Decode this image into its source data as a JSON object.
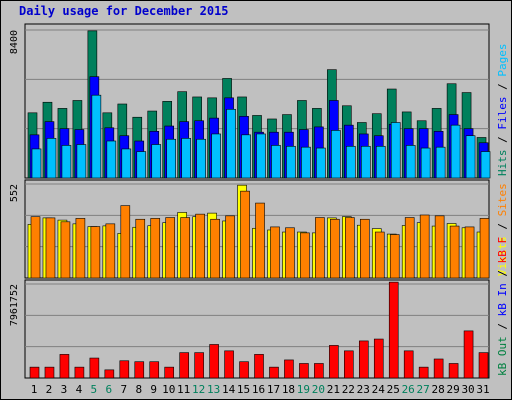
{
  "title": "Daily usage for December 2015",
  "colors": {
    "background": "#C0C0C0",
    "panel": "#C0C0C0",
    "hits": "#00805C",
    "files": "#0000FF",
    "pages": "#00C0FF",
    "visits": "#FFFF00",
    "sites": "#FF8000",
    "kbin": "#0000FF",
    "kbout": "#008040",
    "kbytes": "#FF0000",
    "weekday_label": "#000000",
    "weekend_label": "#00805C"
  },
  "legend": {
    "top": [
      {
        "text": "Hits",
        "color": "#00805C"
      },
      {
        "text": "Files",
        "color": "#0000FF"
      },
      {
        "text": "Pages",
        "color": "#00C0FF"
      }
    ],
    "middle": [
      {
        "text": "Visits",
        "color": "#FFFF00"
      },
      {
        "text": "Sites",
        "color": "#FF8000"
      }
    ],
    "bottom": [
      {
        "text": "kB Out",
        "color": "#008040"
      },
      {
        "text": "kB In",
        "color": "#0000FF"
      },
      {
        "text": "kB F",
        "color": "#FF0000"
      }
    ]
  },
  "chart_data": {
    "type": "bar",
    "title": "Daily usage for December 2015",
    "categories": [
      "1",
      "2",
      "3",
      "4",
      "5",
      "6",
      "7",
      "8",
      "9",
      "10",
      "11",
      "12",
      "13",
      "14",
      "15",
      "16",
      "17",
      "18",
      "19",
      "20",
      "21",
      "22",
      "23",
      "24",
      "25",
      "26",
      "27",
      "28",
      "29",
      "30",
      "31"
    ],
    "weekend": [
      "5",
      "6",
      "12",
      "13",
      "19",
      "20",
      "26",
      "27"
    ],
    "panels": [
      {
        "name": "hits-files-pages",
        "ymax": 8400,
        "ymax_label": "8400",
        "series": [
          {
            "name": "Hits",
            "color": "#00805C",
            "values": [
              3700,
              4300,
              3950,
              4400,
              8350,
              3700,
              4200,
              3450,
              3800,
              4350,
              4900,
              4600,
              4550,
              5650,
              4600,
              3550,
              3350,
              3600,
              4400,
              3950,
              6150,
              4100,
              3150,
              3650,
              5050,
              3750,
              3250,
              3950,
              5350,
              4850,
              2300
            ]
          },
          {
            "name": "Files",
            "color": "#0000FF",
            "values": [
              2450,
              3200,
              2800,
              2750,
              5750,
              2850,
              2400,
              2100,
              2650,
              2950,
              3200,
              3250,
              3400,
              4550,
              3500,
              2600,
              2600,
              2600,
              2750,
              2900,
              4400,
              3000,
              2500,
              2400,
              3050,
              2800,
              2800,
              2650,
              3600,
              2800,
              2000
            ]
          },
          {
            "name": "Pages",
            "color": "#00C0FF",
            "values": [
              1650,
              2250,
              1850,
              1900,
              4700,
              2100,
              1650,
              1500,
              1900,
              2200,
              2250,
              2200,
              2500,
              3900,
              2450,
              2500,
              1850,
              1800,
              1750,
              1700,
              2700,
              1800,
              1800,
              1800,
              3150,
              1850,
              1700,
              1750,
              3000,
              2400,
              1500
            ]
          }
        ]
      },
      {
        "name": "visits-sites",
        "ymax": 552,
        "ymax_label": "552",
        "series": [
          {
            "name": "Visits",
            "color": "#FFFF00",
            "values": [
              315,
              353,
              340,
              318,
              302,
              306,
              262,
              298,
              307,
              325,
              385,
              360,
              381,
              335,
              545,
              292,
              282,
              270,
              270,
              265,
              353,
              360,
              310,
              290,
              258,
              308,
              325,
              305,
              320,
              295,
              270
            ]
          },
          {
            "name": "Sites",
            "color": "#FF8000",
            "values": [
              360,
              353,
              330,
              350,
              302,
              318,
              425,
              345,
              350,
              355,
              355,
              375,
              345,
              365,
              510,
              440,
              300,
              295,
              265,
              355,
              345,
              355,
              345,
              270,
              255,
              355,
              370,
              365,
              305,
              300,
              350
            ]
          }
        ]
      },
      {
        "name": "kbytes",
        "ymax": 7961752,
        "ymax_label": "7961752",
        "series": [
          {
            "name": "kB F",
            "color": "#FF0000",
            "values": [
              920000,
              920000,
              2000000,
              920000,
              1690000,
              690000,
              1460000,
              1380000,
              1380000,
              920000,
              2150000,
              2150000,
              2840000,
              2300000,
              1380000,
              2000000,
              920000,
              1530000,
              1230000,
              1230000,
              2760000,
              2300000,
              3140000,
              3300000,
              8120000,
              2300000,
              920000,
              1610000,
              1230000,
              3990000,
              2150000
            ]
          }
        ]
      }
    ]
  }
}
